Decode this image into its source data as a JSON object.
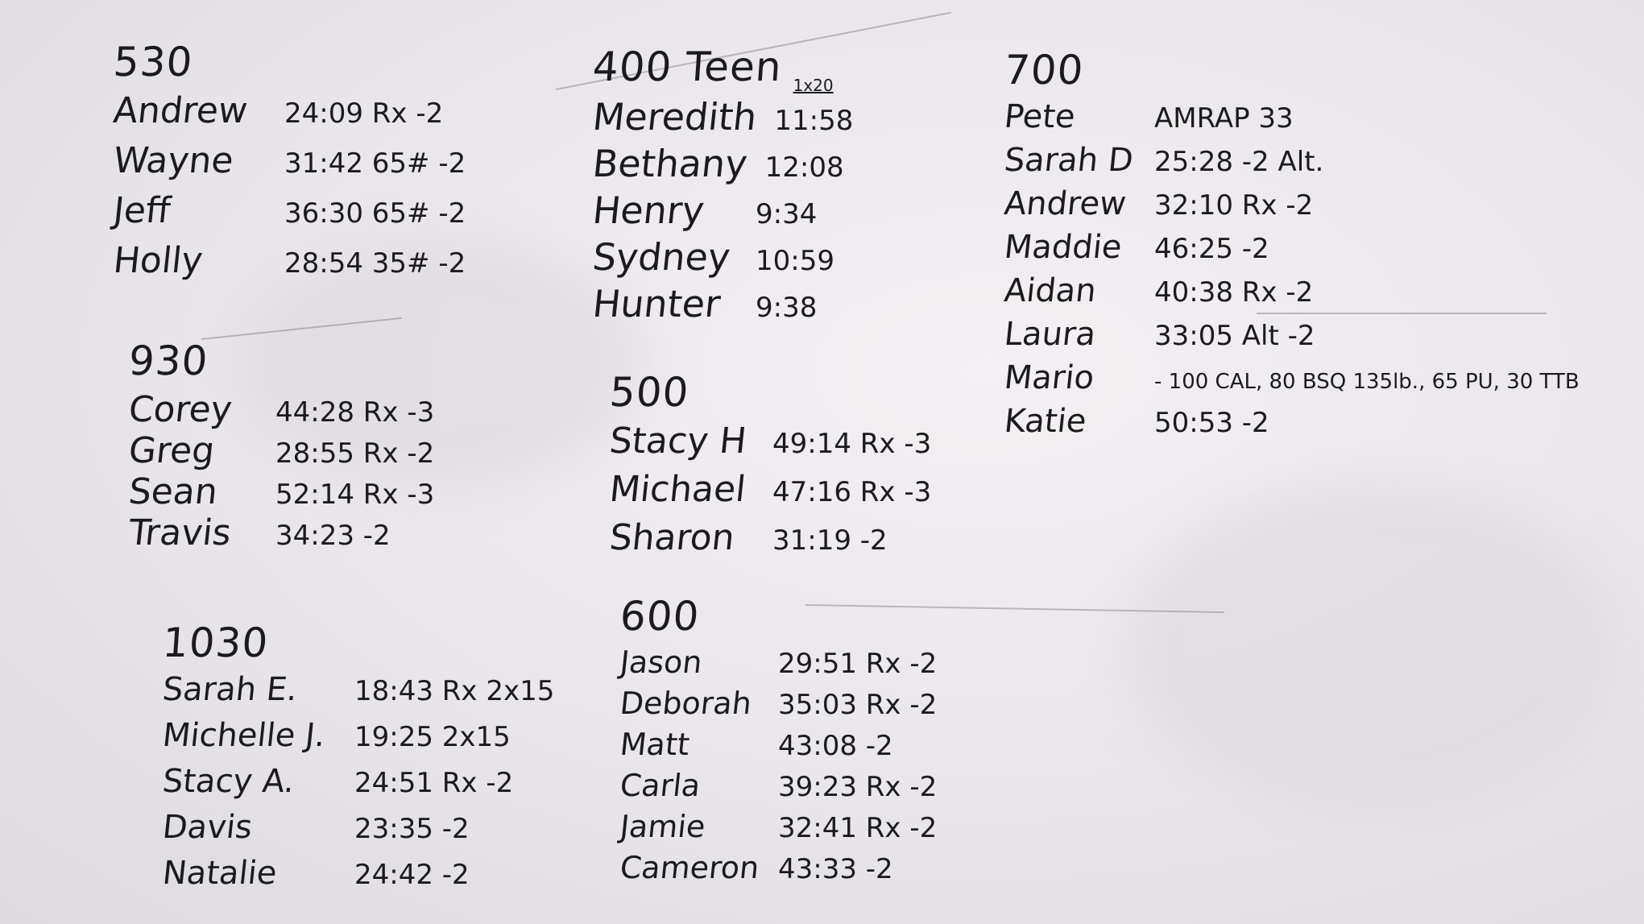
{
  "board": {
    "background_color": "#ece9ed",
    "marker_color": "#1b1b1d",
    "sections": [
      {
        "id": "s530",
        "header": "530",
        "rows": [
          {
            "name": "Andrew",
            "score": "24:09 Rx -2"
          },
          {
            "name": "Wayne",
            "score": "31:42 65# -2"
          },
          {
            "name": "Jeff",
            "score": "36:30 65# -2"
          },
          {
            "name": "Holly",
            "score": "28:54 35# -2"
          }
        ]
      },
      {
        "id": "s930",
        "header": "930",
        "rows": [
          {
            "name": "Corey",
            "score": "44:28 Rx -3"
          },
          {
            "name": "Greg",
            "score": "28:55 Rx -2"
          },
          {
            "name": "Sean",
            "score": "52:14 Rx -3"
          },
          {
            "name": "Travis",
            "score": "34:23 -2"
          }
        ]
      },
      {
        "id": "s1030",
        "header": "1030",
        "rows": [
          {
            "name": "Sarah E.",
            "score": "18:43 Rx 2x15"
          },
          {
            "name": "Michelle J.",
            "score": "19:25 2x15"
          },
          {
            "name": "Stacy A.",
            "score": "24:51 Rx -2"
          },
          {
            "name": "Davis",
            "score": "23:35 -2"
          },
          {
            "name": "Natalie",
            "score": "24:42 -2"
          }
        ]
      },
      {
        "id": "s400",
        "header": "400 Teen",
        "subheader": "1x20",
        "rows": [
          {
            "name": "Meredith",
            "score": "11:58"
          },
          {
            "name": "Bethany",
            "score": "12:08"
          },
          {
            "name": "Henry",
            "score": "9:34"
          },
          {
            "name": "Sydney",
            "score": "10:59"
          },
          {
            "name": "Hunter",
            "score": "9:38"
          }
        ]
      },
      {
        "id": "s500",
        "header": "500",
        "rows": [
          {
            "name": "Stacy H",
            "score": "49:14 Rx -3"
          },
          {
            "name": "Michael",
            "score": "47:16 Rx -3"
          },
          {
            "name": "Sharon",
            "score": "31:19 -2"
          }
        ]
      },
      {
        "id": "s600",
        "header": "600",
        "rows": [
          {
            "name": "Jason",
            "score": "29:51 Rx -2"
          },
          {
            "name": "Deborah",
            "score": "35:03 Rx -2"
          },
          {
            "name": "Matt",
            "score": "43:08 -2"
          },
          {
            "name": "Carla",
            "score": "39:23 Rx -2"
          },
          {
            "name": "Jamie",
            "score": "32:41 Rx -2"
          },
          {
            "name": "Cameron",
            "score": "43:33 -2"
          }
        ]
      },
      {
        "id": "s700",
        "header": "700",
        "rows": [
          {
            "name": "Pete",
            "score": "AMRAP 33"
          },
          {
            "name": "Sarah D",
            "score": "25:28 -2 Alt."
          },
          {
            "name": "Andrew",
            "score": "32:10 Rx -2"
          },
          {
            "name": "Maddie",
            "score": "46:25 -2"
          },
          {
            "name": "Aidan",
            "score": "40:38 Rx -2"
          },
          {
            "name": "Laura",
            "score": "33:05 Alt -2"
          },
          {
            "name": "Mario",
            "score": "- 100 CAL, 80 BSQ 135lb., 65 PU, 30 TTB"
          },
          {
            "name": "Katie",
            "score": "50:53 -2"
          }
        ]
      }
    ]
  }
}
